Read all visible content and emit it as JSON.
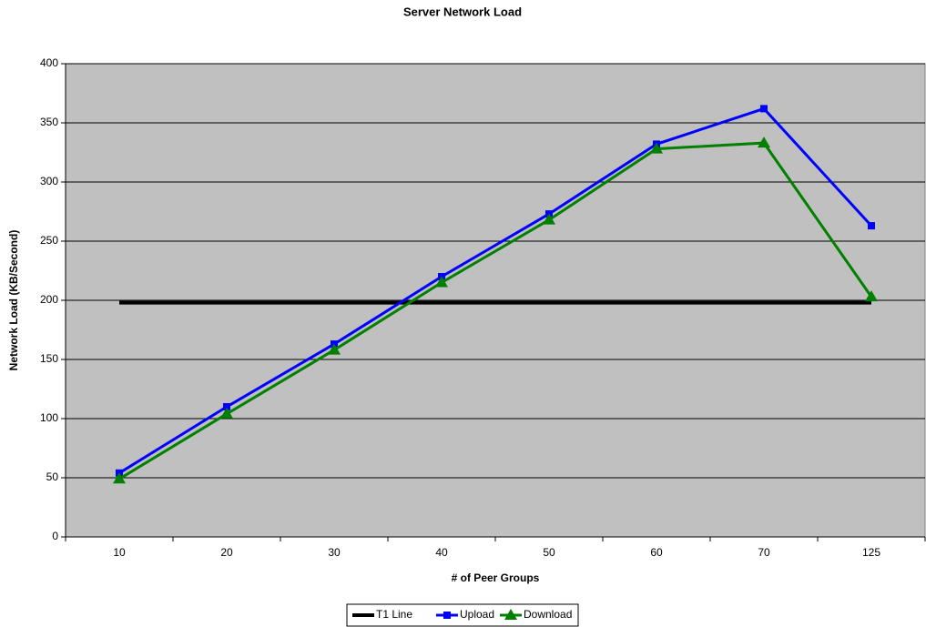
{
  "chart_data": {
    "type": "line",
    "title": "Server Network Load",
    "x_label": "# of Peer Groups",
    "y_label": "Network Load (KB/Second)",
    "categories": [
      "10",
      "20",
      "30",
      "40",
      "50",
      "60",
      "70",
      "125"
    ],
    "series": [
      {
        "name": "T1 Line",
        "color": "#000000",
        "marker": "none",
        "values": [
          198,
          198,
          198,
          198,
          198,
          198,
          198,
          198
        ]
      },
      {
        "name": "Upload",
        "color": "#0000ff",
        "marker": "square",
        "values": [
          54,
          110,
          163,
          220,
          273,
          332,
          362,
          263
        ]
      },
      {
        "name": "Download",
        "color": "#008000",
        "marker": "triangle",
        "values": [
          49,
          104,
          158,
          215,
          268,
          328,
          333,
          203
        ]
      }
    ],
    "ylim": [
      0,
      400
    ],
    "yticks": [
      0,
      50,
      100,
      150,
      200,
      250,
      300,
      350,
      400
    ],
    "grid": true,
    "legend": "bottom",
    "plot_background": "#c0c0c0"
  }
}
